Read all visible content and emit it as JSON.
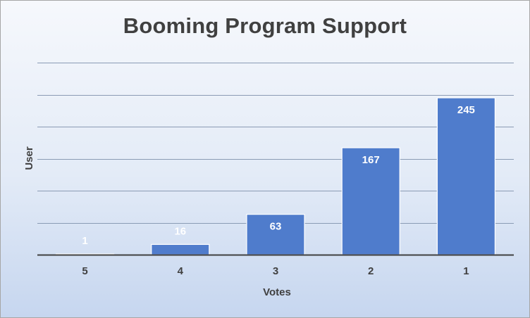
{
  "chart_data": {
    "type": "bar",
    "title": "Booming Program Support",
    "xlabel": "Votes",
    "ylabel": "User",
    "categories": [
      "5",
      "4",
      "3",
      "2",
      "1"
    ],
    "values": [
      1,
      16,
      63,
      167,
      245
    ],
    "data_labels": [
      "1",
      "16",
      "63",
      "167",
      "245"
    ],
    "ylim": [
      0,
      300
    ],
    "y_gridlines": [
      50,
      100,
      150,
      200,
      250,
      300
    ],
    "y_tick_labels_shown": false,
    "grid": true,
    "legend": "none",
    "colors": {
      "bar_fill": "#4f7ccc",
      "bar_stroke": "#ffffff",
      "gridline": "#8a9bb4",
      "axis": "#404040",
      "title": "#404040",
      "data_label": "#ffffff"
    }
  }
}
